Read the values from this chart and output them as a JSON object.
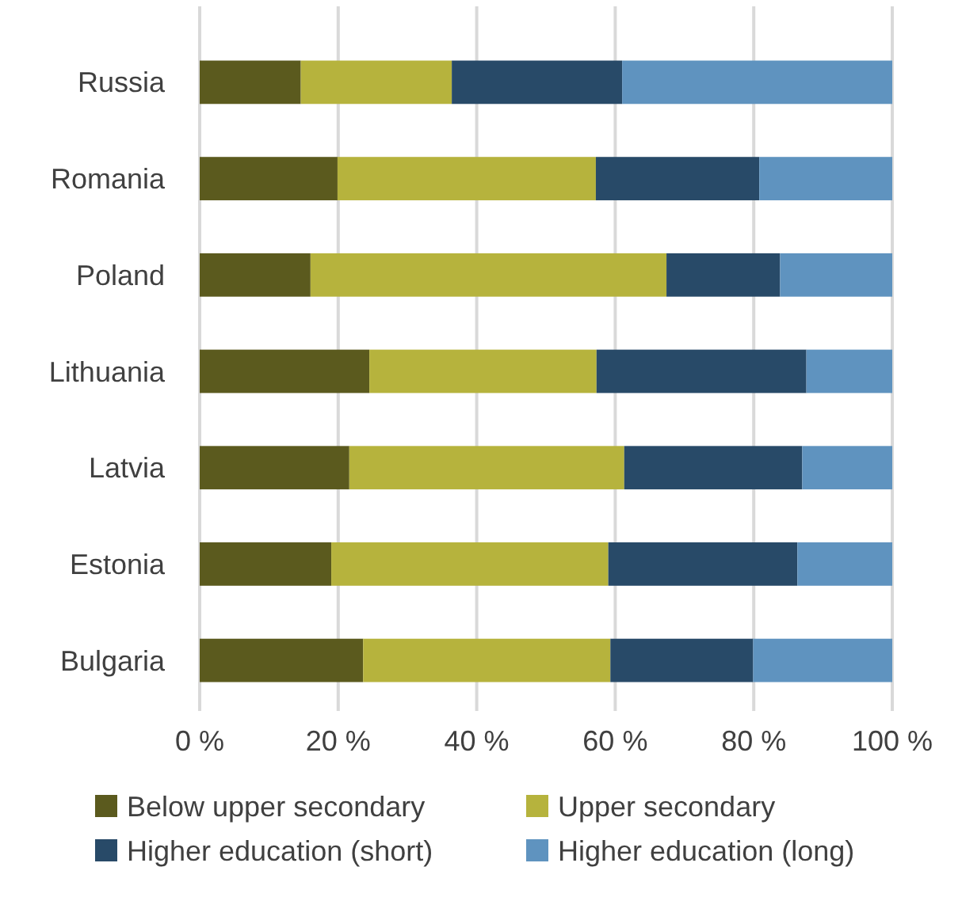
{
  "chart_data": {
    "type": "bar",
    "orientation": "horizontal",
    "stacked": true,
    "categories": [
      "Russia",
      "Romania",
      "Poland",
      "Lithuania",
      "Latvia",
      "Estonia",
      "Bulgaria"
    ],
    "series": [
      {
        "name": "Below upper secondary",
        "color": "#5b5a1e",
        "values": [
          14.6,
          19.9,
          16.0,
          24.5,
          21.6,
          19.0,
          23.6
        ]
      },
      {
        "name": "Upper secondary",
        "color": "#b6b33d",
        "values": [
          21.8,
          37.3,
          51.4,
          32.8,
          39.7,
          40.0,
          35.7
        ]
      },
      {
        "name": "Higher education (short)",
        "color": "#284a68",
        "values": [
          24.6,
          23.6,
          16.4,
          30.3,
          25.7,
          27.3,
          20.6
        ]
      },
      {
        "name": "Higher education (long)",
        "color": "#5f93bf",
        "values": [
          39.0,
          19.2,
          16.2,
          12.4,
          13.0,
          13.7,
          20.1
        ]
      }
    ],
    "xlim": [
      0,
      100
    ],
    "xticks": [
      {
        "value": 0,
        "label": "0 %"
      },
      {
        "value": 20,
        "label": "20 %"
      },
      {
        "value": 40,
        "label": "40 %"
      },
      {
        "value": 60,
        "label": "60 %"
      },
      {
        "value": 80,
        "label": "80 %"
      },
      {
        "value": 100,
        "label": "100 %"
      }
    ],
    "grid": "x",
    "legend": "bottom"
  }
}
